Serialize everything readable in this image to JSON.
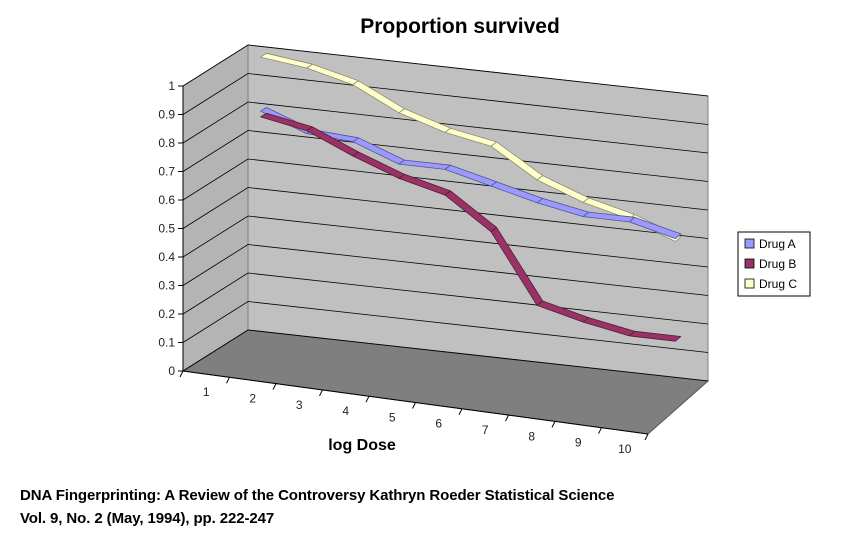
{
  "chart_data": {
    "type": "line",
    "style": "3d",
    "title": "Proportion survived",
    "xlabel": "log Dose",
    "ylabel": "",
    "categories": [
      "1",
      "2",
      "3",
      "4",
      "5",
      "6",
      "7",
      "8",
      "9",
      "10"
    ],
    "ylim": [
      0,
      1
    ],
    "yticks": [
      "0",
      "0.1",
      "0.2",
      "0.3",
      "0.4",
      "0.5",
      "0.6",
      "0.7",
      "0.8",
      "0.9",
      "1"
    ],
    "grid": true,
    "legend_position": "right",
    "series": [
      {
        "name": "Drug A",
        "values": [
          0.8,
          0.74,
          0.73,
          0.67,
          0.67,
          0.63,
          0.59,
          0.56,
          0.56,
          0.52
        ],
        "color": "#9999ff"
      },
      {
        "name": "Drug B",
        "values": [
          0.78,
          0.75,
          0.68,
          0.62,
          0.58,
          0.47,
          0.23,
          0.19,
          0.16,
          0.16
        ],
        "color": "#993366"
      },
      {
        "name": "Drug C",
        "values": [
          0.99,
          0.97,
          0.93,
          0.85,
          0.8,
          0.77,
          0.67,
          0.61,
          0.57,
          0.51
        ],
        "color": "#ffffcc"
      }
    ]
  },
  "caption": {
    "line1": "DNA Fingerprinting: A Review of the Controversy Kathryn Roeder Statistical Science",
    "line2": "Vol. 9, No. 2 (May, 1994), pp. 222-247"
  }
}
